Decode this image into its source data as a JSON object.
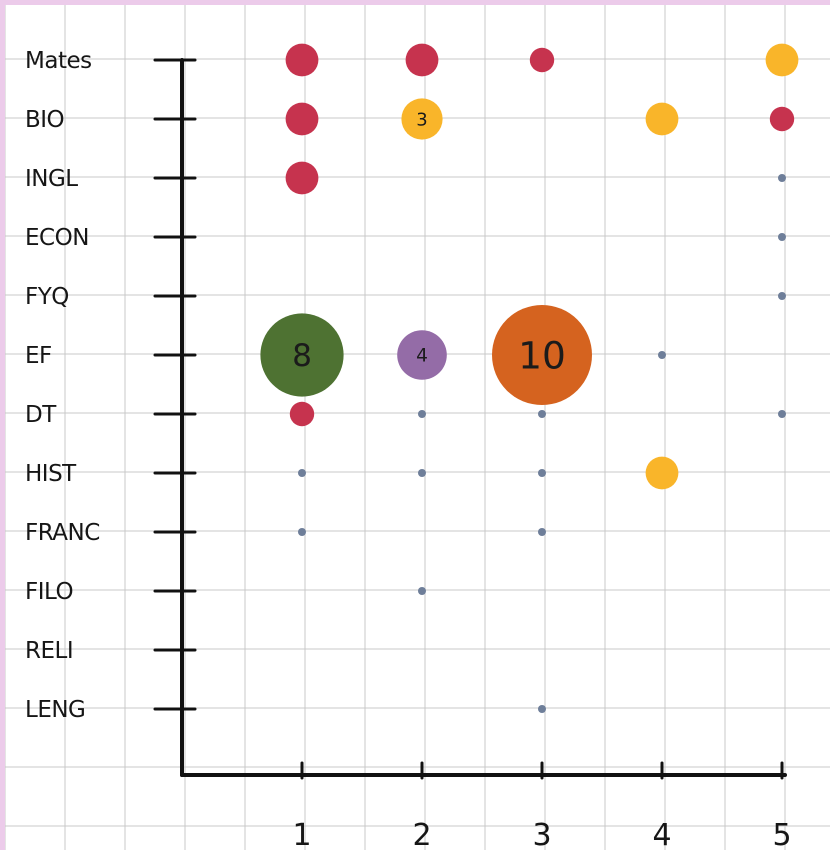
{
  "chart_data": {
    "type": "scatter",
    "title": "",
    "xlabel": "",
    "ylabel": "",
    "x_ticks": [
      "1",
      "2",
      "3",
      "4",
      "5"
    ],
    "y_categories": [
      "Mates",
      "BIO",
      "INGL",
      "ECON",
      "FYQ",
      "EF",
      "DT",
      "HIST",
      "FRANC",
      "FILO",
      "RELI",
      "LENG"
    ],
    "xlim": [
      0,
      5
    ],
    "grid": true,
    "legend": "none",
    "colors": {
      "red": "#c6334e",
      "yellow": "#f9b52a",
      "gray": "#6e7e99",
      "green": "#4e7232",
      "purple": "#946ca7",
      "orange": "#d5631f",
      "grid": "#c8c8c8",
      "page_border": "#eccbea"
    },
    "points": [
      {
        "x": 1,
        "y": "Mates",
        "value": 2,
        "color": "red"
      },
      {
        "x": 2,
        "y": "Mates",
        "value": 2,
        "color": "red"
      },
      {
        "x": 3,
        "y": "Mates",
        "value": 1,
        "color": "red"
      },
      {
        "x": 5,
        "y": "Mates",
        "value": 2,
        "color": "yellow"
      },
      {
        "x": 1,
        "y": "BIO",
        "value": 2,
        "color": "red"
      },
      {
        "x": 2,
        "y": "BIO",
        "value": 3,
        "color": "yellow",
        "label": "3"
      },
      {
        "x": 4,
        "y": "BIO",
        "value": 2,
        "color": "yellow"
      },
      {
        "x": 5,
        "y": "BIO",
        "value": 1,
        "color": "red"
      },
      {
        "x": 1,
        "y": "INGL",
        "value": 2,
        "color": "red"
      },
      {
        "x": 5,
        "y": "INGL",
        "value": 0.5,
        "color": "gray"
      },
      {
        "x": 5,
        "y": "ECON",
        "value": 0.5,
        "color": "gray"
      },
      {
        "x": 5,
        "y": "FYQ",
        "value": 0.5,
        "color": "gray"
      },
      {
        "x": 1,
        "y": "EF",
        "value": 8,
        "color": "green",
        "label": "8"
      },
      {
        "x": 2,
        "y": "EF",
        "value": 4,
        "color": "purple",
        "label": "4"
      },
      {
        "x": 3,
        "y": "EF",
        "value": 10,
        "color": "orange",
        "label": "10"
      },
      {
        "x": 4,
        "y": "EF",
        "value": 0.5,
        "color": "gray"
      },
      {
        "x": 1,
        "y": "DT",
        "value": 1,
        "color": "red"
      },
      {
        "x": 2,
        "y": "DT",
        "value": 0.5,
        "color": "gray"
      },
      {
        "x": 3,
        "y": "DT",
        "value": 0.5,
        "color": "gray"
      },
      {
        "x": 5,
        "y": "DT",
        "value": 0.5,
        "color": "gray"
      },
      {
        "x": 1,
        "y": "HIST",
        "value": 0.5,
        "color": "gray"
      },
      {
        "x": 2,
        "y": "HIST",
        "value": 0.5,
        "color": "gray"
      },
      {
        "x": 3,
        "y": "HIST",
        "value": 0.5,
        "color": "gray"
      },
      {
        "x": 4,
        "y": "HIST",
        "value": 2,
        "color": "yellow"
      },
      {
        "x": 1,
        "y": "FRANC",
        "value": 0.5,
        "color": "gray"
      },
      {
        "x": 3,
        "y": "FRANC",
        "value": 0.5,
        "color": "gray"
      },
      {
        "x": 2,
        "y": "FILO",
        "value": 0.5,
        "color": "gray"
      },
      {
        "x": 3,
        "y": "LENG",
        "value": 0.5,
        "color": "gray"
      }
    ]
  }
}
